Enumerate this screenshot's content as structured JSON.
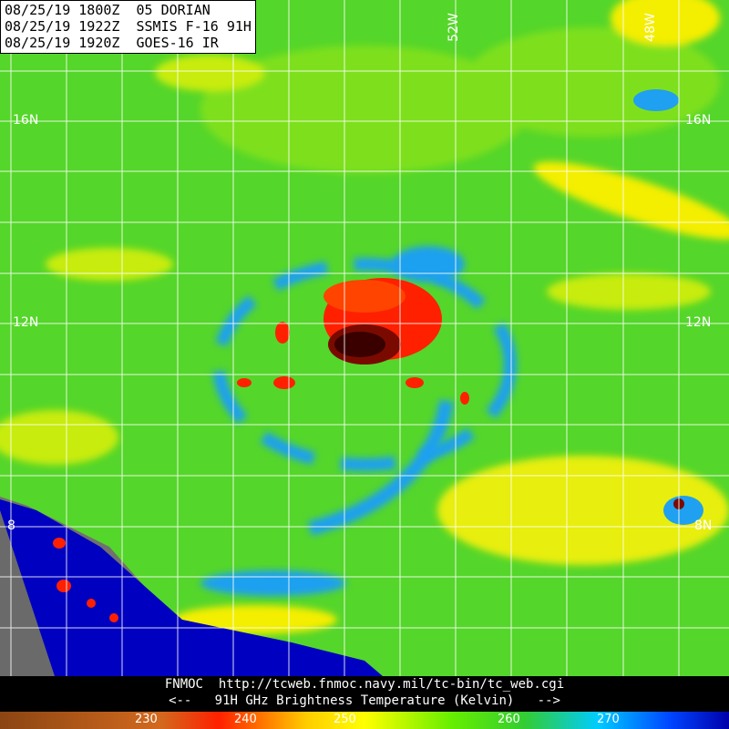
{
  "header": {
    "lines": [
      "08/25/19 1800Z  05 DORIAN",
      "08/25/19 1922Z  SSMIS F-16 91H",
      "08/25/19 1920Z  GOES-16 IR"
    ]
  },
  "map_labels": {
    "lat_16_left": "16N",
    "lat_16_right": "16N",
    "lat_12_left": "12N",
    "lat_12_right": "12N",
    "lat_8_left": "8",
    "lat_8_right": "8N",
    "lon_52": "52W",
    "lon_48": "48W"
  },
  "footer": {
    "source": "FNMOC  http://tcweb.fnmoc.navy.mil/tc-bin/tc_web.cgi",
    "legend": "<--   91H GHz Brightness Temperature (Kelvin)   -->"
  },
  "colorbar": {
    "ticks": [
      230,
      240,
      250,
      260,
      270
    ]
  }
}
